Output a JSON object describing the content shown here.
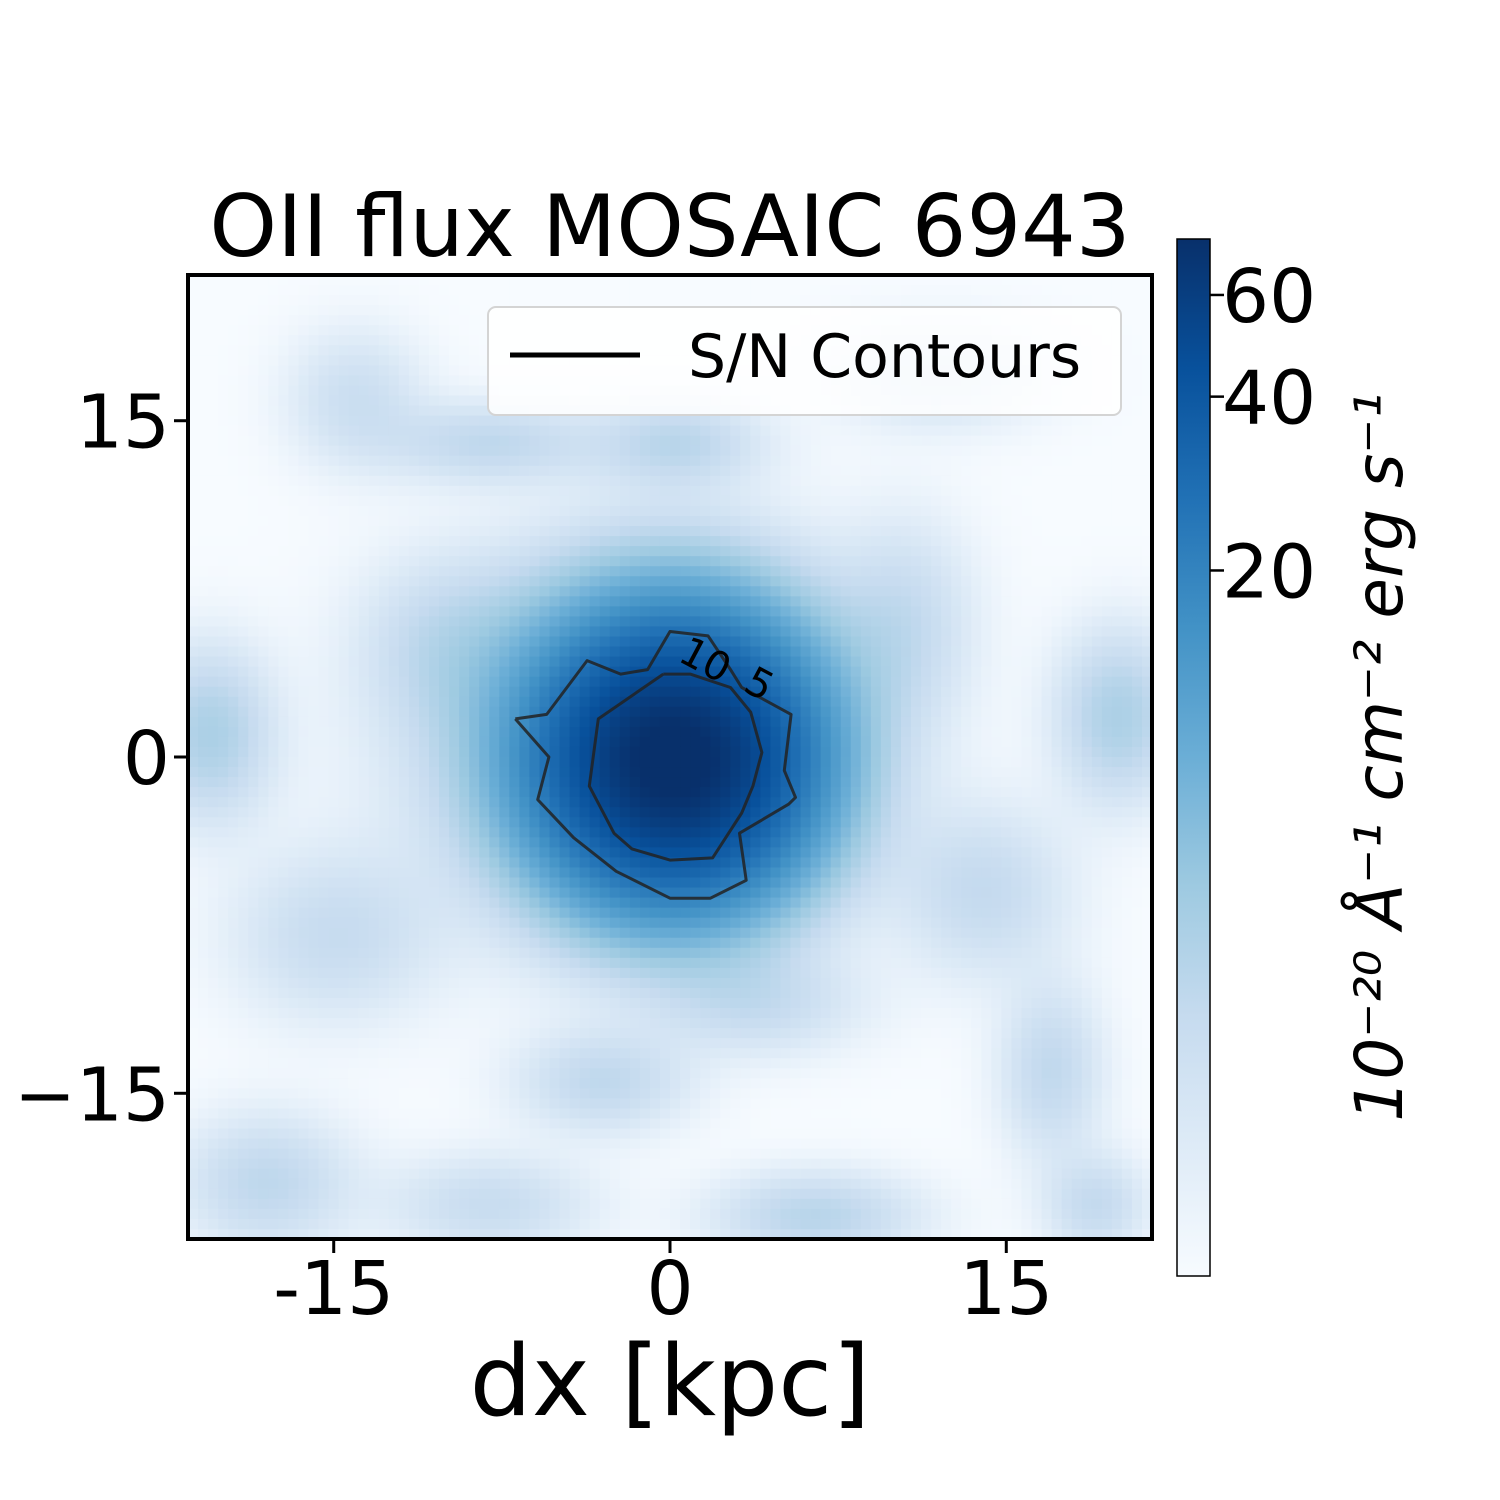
{
  "chart_data": {
    "type": "heatmap",
    "title": "OII flux MOSAIC 6943",
    "xlabel": "dx [kpc]",
    "ylabel": "",
    "xlim": [
      -21.5,
      21.5
    ],
    "ylim": [
      -21.5,
      21.5
    ],
    "x_ticks": [
      {
        "value": -15,
        "label": "-15"
      },
      {
        "value": 0,
        "label": "0"
      },
      {
        "value": 15,
        "label": "15"
      }
    ],
    "y_ticks": [
      {
        "value": 15,
        "label": "15"
      },
      {
        "value": 0,
        "label": "0"
      },
      {
        "value": -15,
        "label": "−15"
      }
    ],
    "colormap": "Blues",
    "colormap_stops": [
      "#f7fbff",
      "#deebf7",
      "#c6dbef",
      "#9ecae1",
      "#6baed6",
      "#4292c6",
      "#2171b5",
      "#08519c",
      "#08306b"
    ],
    "colorbar": {
      "label": "10⁻²⁰ Å⁻¹ cm⁻² erg s⁻¹",
      "scale": "log",
      "min": 1.2,
      "max": 75,
      "ticks": [
        {
          "value": 20,
          "label": "20"
        },
        {
          "value": 40,
          "label": "40"
        },
        {
          "value": 60,
          "label": "60"
        }
      ]
    },
    "legend": {
      "placement": "top-right",
      "entries": [
        {
          "label": "S/N Contours",
          "color": "#000000"
        }
      ]
    },
    "peak": {
      "x": 0.2,
      "y": -0.5,
      "value": 75
    },
    "contours": [
      {
        "level_label": "10",
        "points": [
          [
            -6.9,
            1.7
          ],
          [
            -5.5,
            1.9
          ],
          [
            -3.7,
            4.3
          ],
          [
            -2.2,
            3.7
          ],
          [
            -1.0,
            3.9
          ],
          [
            0.0,
            5.6
          ],
          [
            1.7,
            5.4
          ],
          [
            2.7,
            3.9
          ],
          [
            3.2,
            3.1
          ],
          [
            5.4,
            1.9
          ],
          [
            5.1,
            -0.6
          ],
          [
            5.6,
            -1.8
          ],
          [
            5.3,
            -2.1
          ],
          [
            3.1,
            -3.4
          ],
          [
            3.4,
            -5.5
          ],
          [
            1.8,
            -6.3
          ],
          [
            0.0,
            -6.3
          ],
          [
            -2.4,
            -5.1
          ],
          [
            -4.3,
            -3.6
          ],
          [
            -5.9,
            -1.9
          ],
          [
            -5.4,
            0.0
          ],
          [
            -6.9,
            1.7
          ]
        ]
      },
      {
        "level_label": "5",
        "points": [
          [
            -0.3,
            3.7
          ],
          [
            -3.2,
            1.7
          ],
          [
            -3.6,
            -1.3
          ],
          [
            -2.5,
            -3.4
          ],
          [
            -1.7,
            -4.1
          ],
          [
            0.0,
            -4.6
          ],
          [
            1.9,
            -4.5
          ],
          [
            3.2,
            -2.5
          ],
          [
            3.7,
            -1.3
          ],
          [
            4.1,
            0.2
          ],
          [
            3.6,
            2.0
          ],
          [
            2.7,
            3.1
          ],
          [
            0.9,
            3.7
          ],
          [
            -0.3,
            3.7
          ]
        ]
      }
    ],
    "blobs": [
      {
        "x": 0.2,
        "y": -0.3,
        "sx": 3.6,
        "sy": 3.6,
        "v": 73
      },
      {
        "x": 0.0,
        "y": 2.5,
        "sx": 4.5,
        "sy": 4.0,
        "v": 7
      },
      {
        "x": -3.0,
        "y": 0.0,
        "sx": 6.0,
        "sy": 5.0,
        "v": 2.5
      },
      {
        "x": -20.5,
        "y": 1.0,
        "sx": 1.8,
        "sy": 2.5,
        "v": 3.5
      },
      {
        "x": 20.0,
        "y": 1.8,
        "sx": 1.8,
        "sy": 2.5,
        "v": 3.5
      },
      {
        "x": 0.3,
        "y": 14.0,
        "sx": 2.5,
        "sy": 1.3,
        "v": 2.6
      },
      {
        "x": -8.0,
        "y": 14.0,
        "sx": 3.0,
        "sy": 1.2,
        "v": 2.4
      },
      {
        "x": -3.0,
        "y": -14.5,
        "sx": 2.5,
        "sy": 1.5,
        "v": 2.4
      },
      {
        "x": 17.0,
        "y": -14.0,
        "sx": 1.5,
        "sy": 2.5,
        "v": 2.4
      },
      {
        "x": 6.5,
        "y": -20.5,
        "sx": 3.0,
        "sy": 1.3,
        "v": 2.8
      },
      {
        "x": -18.0,
        "y": -19.0,
        "sx": 2.5,
        "sy": 2.0,
        "v": 2.5
      },
      {
        "x": 14.0,
        "y": -6.0,
        "sx": 2.5,
        "sy": 2.5,
        "v": 2.2
      },
      {
        "x": -15.0,
        "y": -8.0,
        "sx": 3.0,
        "sy": 2.5,
        "v": 2.0
      },
      {
        "x": -10.0,
        "y": 5.0,
        "sx": 2.5,
        "sy": 2.5,
        "v": 1.9
      },
      {
        "x": 10.5,
        "y": 6.0,
        "sx": 2.0,
        "sy": 3.0,
        "v": 2.0
      },
      {
        "x": 4.0,
        "y": -11.0,
        "sx": 3.0,
        "sy": 1.5,
        "v": 1.9
      },
      {
        "x": -14.0,
        "y": 16.0,
        "sx": 2.0,
        "sy": 2.0,
        "v": 1.8
      },
      {
        "x": 12.0,
        "y": 17.0,
        "sx": 3.0,
        "sy": 1.5,
        "v": 1.8
      },
      {
        "x": -8.0,
        "y": -20.0,
        "sx": 3.0,
        "sy": 1.5,
        "v": 2.0
      },
      {
        "x": 19.0,
        "y": -20.0,
        "sx": 1.5,
        "sy": 1.5,
        "v": 2.2
      }
    ]
  }
}
